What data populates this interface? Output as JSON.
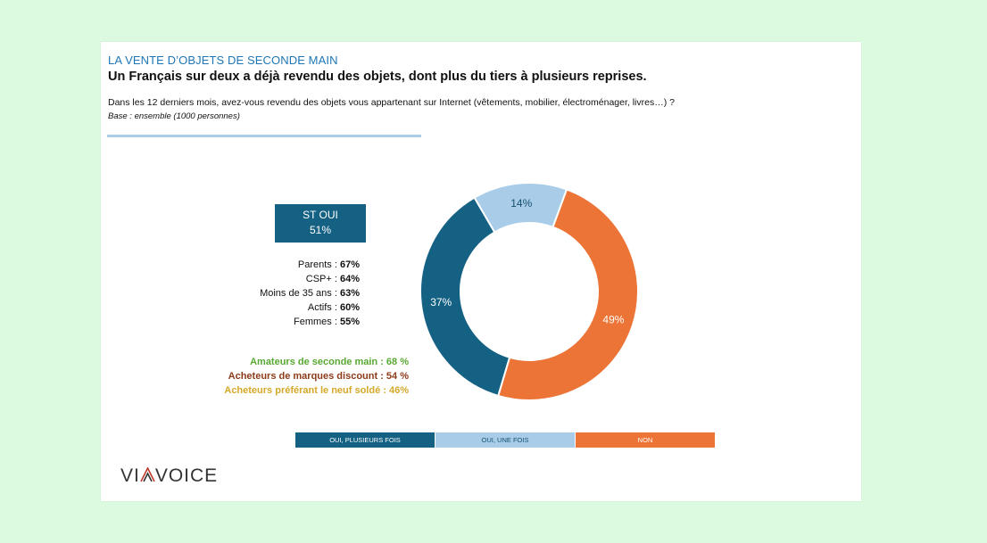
{
  "header": {
    "kicker": "LA VENTE D’OBJETS DE SECONDE MAIN",
    "headline": "Un Français sur deux a déjà revendu des objets, dont plus du tiers à plusieurs reprises.",
    "question": "Dans les 12 derniers mois, avez-vous revendu des objets vous appartenant sur  Internet (vêtements, mobilier, électroménager, livres…) ?",
    "base": "Base : ensemble (1000 personnes)"
  },
  "summary": {
    "label": "ST OUI",
    "value": "51%"
  },
  "profiles": [
    {
      "label": "Parents : ",
      "value": "67%"
    },
    {
      "label": "CSP+ : ",
      "value": "64%"
    },
    {
      "label": "Moins de 35 ans : ",
      "value": "63%"
    },
    {
      "label": "Actifs : ",
      "value": "60%"
    },
    {
      "label": "Femmes : ",
      "value": "55%"
    }
  ],
  "segments": [
    {
      "text": "Amateurs de seconde main : 68 %",
      "color": "#58a832"
    },
    {
      "text": "Acheteurs de marques discount : 54 %",
      "color": "#8e3b1a"
    },
    {
      "text": "Acheteurs préférant le neuf soldé : 46%",
      "color": "#d4a82a"
    }
  ],
  "chart_data": {
    "type": "pie",
    "variant": "donut",
    "categories": [
      "OUI, PLUSIEURS FOIS",
      "OUI, UNE FOIS",
      "NON"
    ],
    "values": [
      37,
      14,
      49
    ],
    "labels": [
      "37%",
      "14%",
      "49%"
    ],
    "colors": [
      "#156184",
      "#a9cde9",
      "#ec7436"
    ],
    "legend_position": "bottom"
  },
  "logo": {
    "left": "VI",
    "right": "VOICE"
  }
}
